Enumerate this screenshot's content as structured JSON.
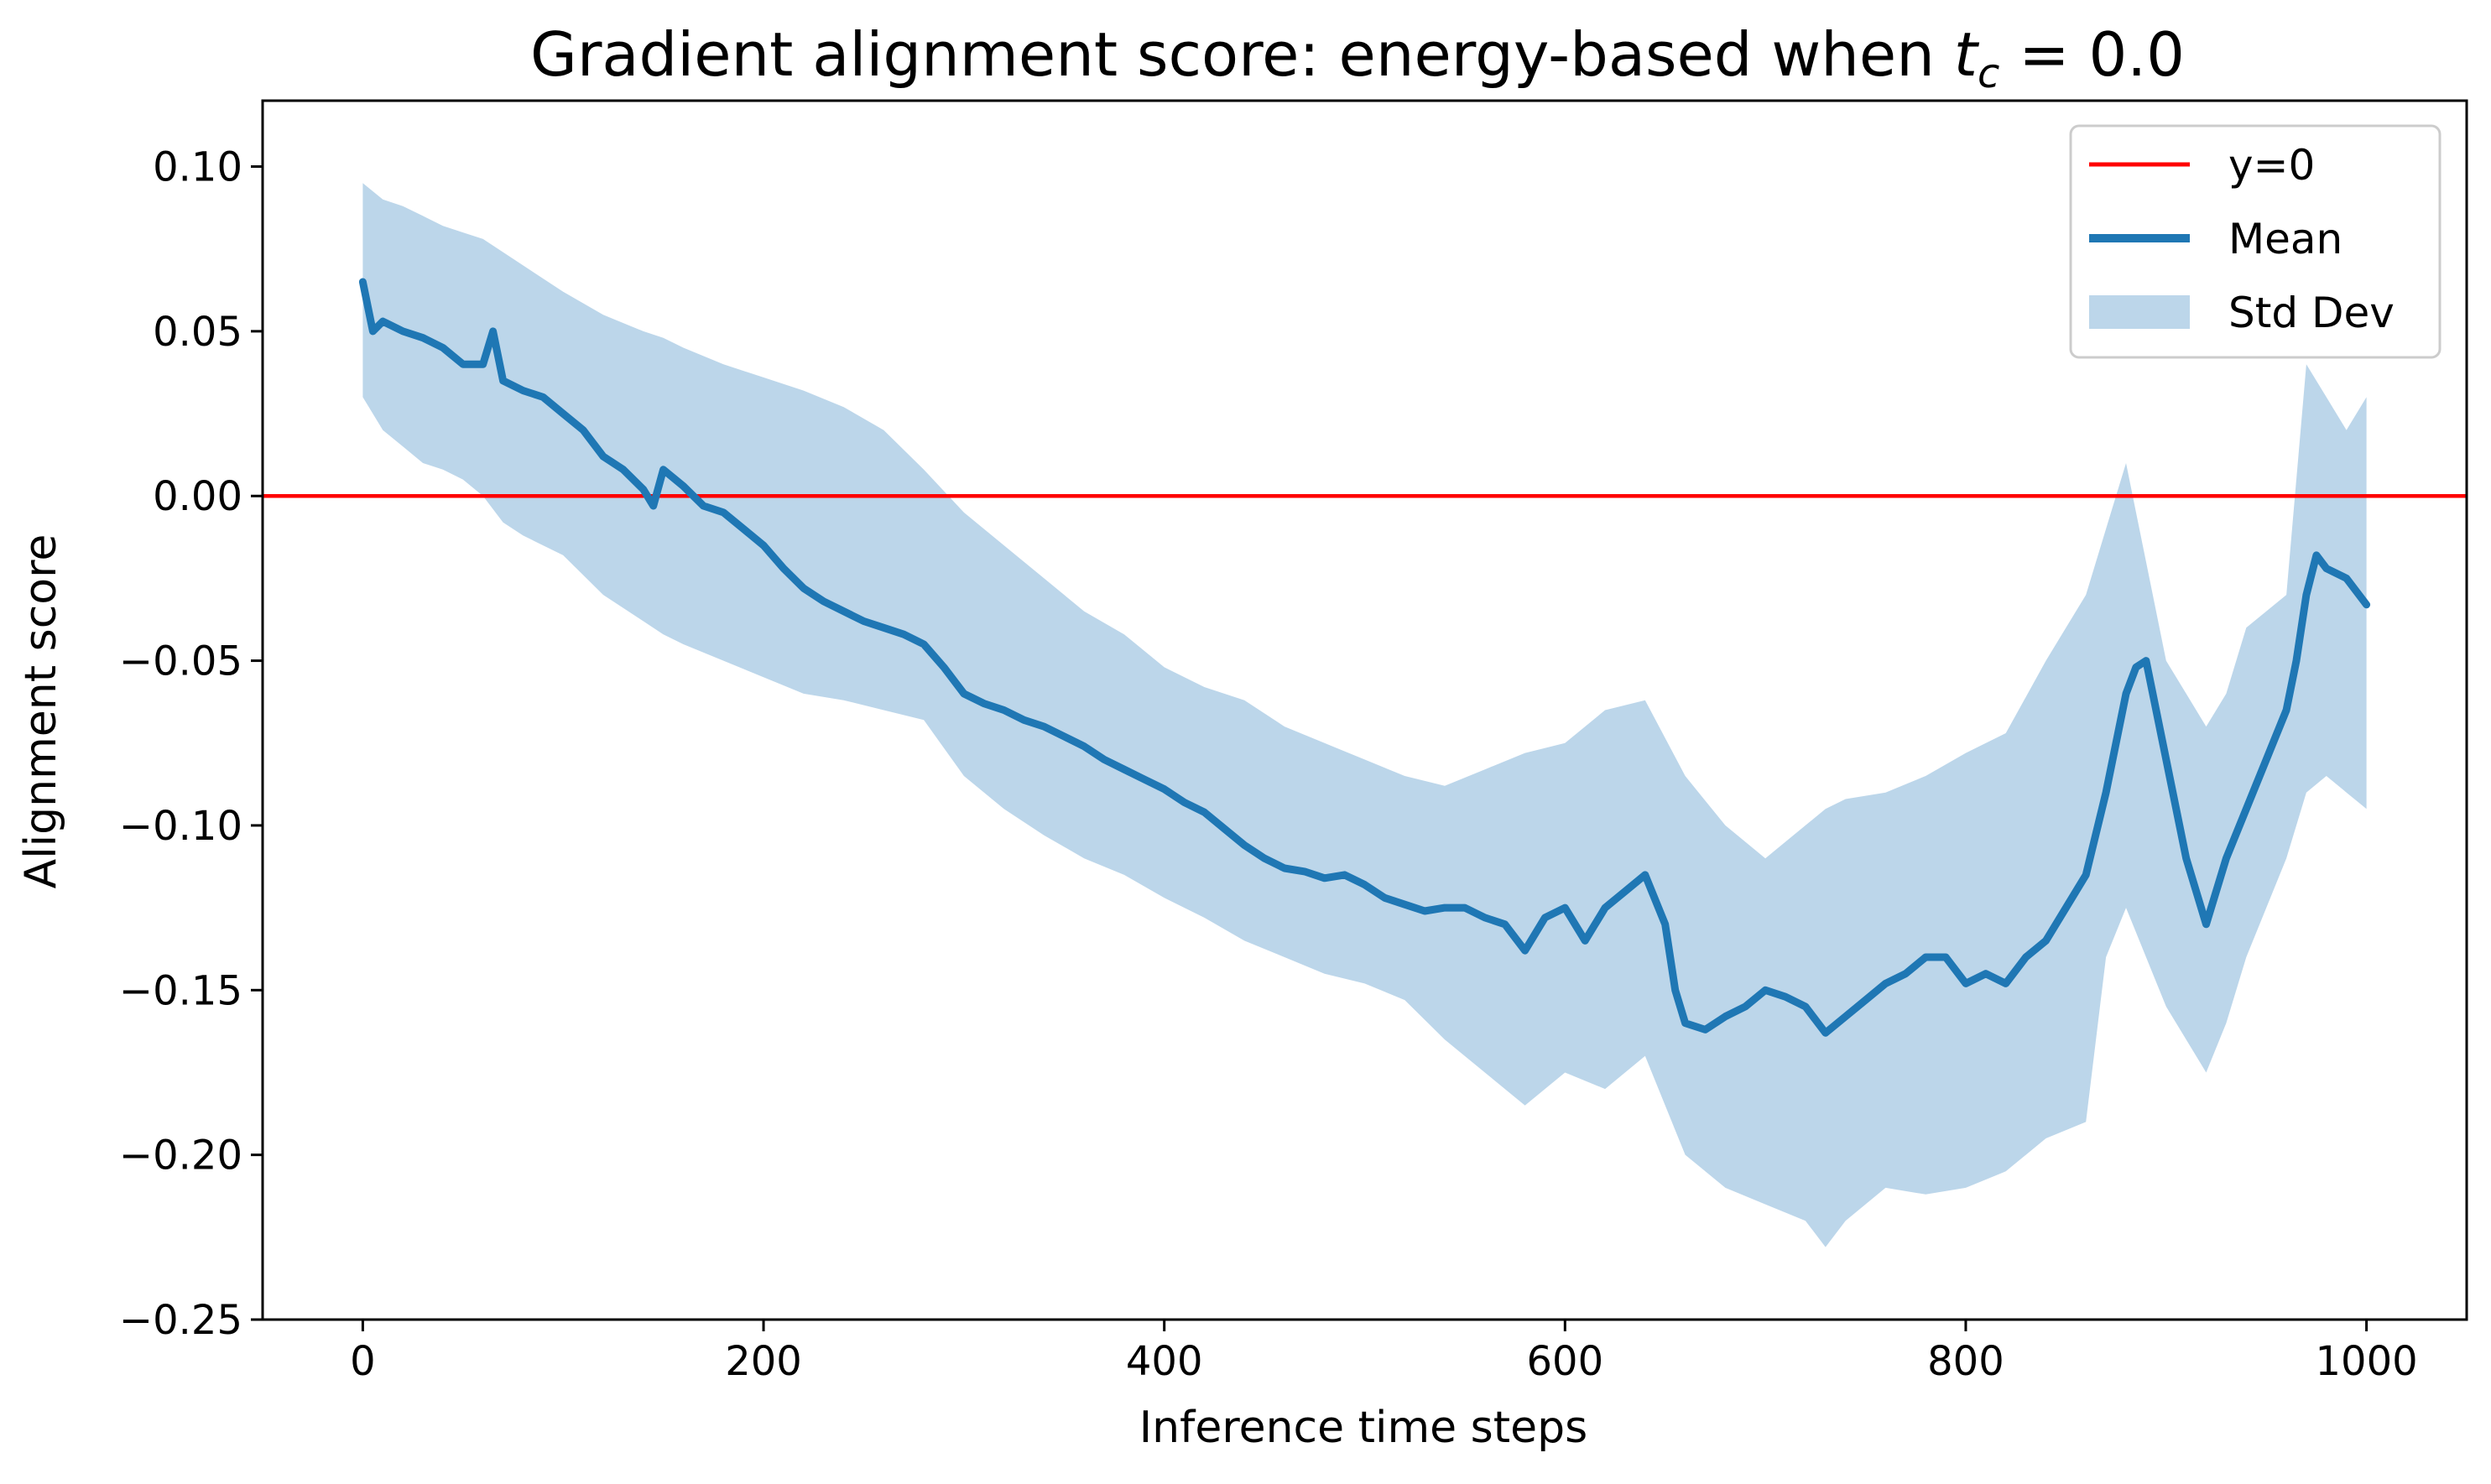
{
  "chart_data": {
    "type": "line",
    "title": "Gradient alignment score: energy-based when ",
    "title_math": {
      "base": "t",
      "subscript": "c",
      "rest": " = 0.0"
    },
    "xlabel": "Inference time steps",
    "ylabel": "Alignment score",
    "xlim": [
      -50,
      1050
    ],
    "ylim": [
      -0.25,
      0.12
    ],
    "xticks": [
      0,
      200,
      400,
      600,
      800,
      1000
    ],
    "xtick_labels": [
      "0",
      "200",
      "400",
      "600",
      "800",
      "1000"
    ],
    "yticks": [
      0.1,
      0.05,
      0.0,
      -0.05,
      -0.1,
      -0.15,
      -0.2,
      -0.25
    ],
    "ytick_labels": [
      "0.10",
      "0.05",
      "0.00",
      "−0.05",
      "−0.10",
      "−0.15",
      "−0.20",
      "−0.25"
    ],
    "grid": false,
    "legend_position": "top-right",
    "reference_line": {
      "y": 0,
      "name": "y=0",
      "color": "#ff0000"
    },
    "series": [
      {
        "name": "Mean",
        "color": "#1f77b4",
        "x": [
          0,
          5,
          10,
          20,
          30,
          40,
          50,
          60,
          65,
          70,
          80,
          90,
          100,
          110,
          120,
          130,
          140,
          145,
          150,
          160,
          170,
          180,
          190,
          200,
          210,
          220,
          230,
          240,
          250,
          260,
          270,
          280,
          290,
          300,
          310,
          320,
          330,
          340,
          350,
          360,
          370,
          380,
          390,
          400,
          410,
          420,
          430,
          440,
          450,
          460,
          470,
          480,
          490,
          500,
          510,
          520,
          530,
          540,
          550,
          560,
          570,
          580,
          590,
          600,
          610,
          620,
          630,
          640,
          650,
          655,
          660,
          670,
          680,
          690,
          700,
          710,
          720,
          730,
          740,
          750,
          760,
          770,
          780,
          790,
          800,
          810,
          820,
          830,
          840,
          850,
          860,
          870,
          880,
          885,
          890,
          900,
          910,
          915,
          920,
          930,
          940,
          950,
          960,
          965,
          970,
          975,
          980,
          990,
          1000
        ],
        "y": [
          0.065,
          0.05,
          0.053,
          0.05,
          0.048,
          0.045,
          0.04,
          0.04,
          0.05,
          0.035,
          0.032,
          0.03,
          0.025,
          0.02,
          0.012,
          0.008,
          0.002,
          -0.003,
          0.008,
          0.003,
          -0.003,
          -0.005,
          -0.01,
          -0.015,
          -0.022,
          -0.028,
          -0.032,
          -0.035,
          -0.038,
          -0.04,
          -0.042,
          -0.045,
          -0.052,
          -0.06,
          -0.063,
          -0.065,
          -0.068,
          -0.07,
          -0.073,
          -0.076,
          -0.08,
          -0.083,
          -0.086,
          -0.089,
          -0.093,
          -0.096,
          -0.101,
          -0.106,
          -0.11,
          -0.113,
          -0.114,
          -0.116,
          -0.115,
          -0.118,
          -0.122,
          -0.124,
          -0.126,
          -0.125,
          -0.125,
          -0.128,
          -0.13,
          -0.138,
          -0.128,
          -0.125,
          -0.135,
          -0.125,
          -0.12,
          -0.115,
          -0.13,
          -0.15,
          -0.16,
          -0.162,
          -0.158,
          -0.155,
          -0.15,
          -0.152,
          -0.155,
          -0.163,
          -0.158,
          -0.153,
          -0.148,
          -0.145,
          -0.14,
          -0.14,
          -0.148,
          -0.145,
          -0.148,
          -0.14,
          -0.135,
          -0.125,
          -0.115,
          -0.09,
          -0.06,
          -0.052,
          -0.05,
          -0.08,
          -0.11,
          -0.12,
          -0.13,
          -0.11,
          -0.095,
          -0.08,
          -0.065,
          -0.05,
          -0.03,
          -0.018,
          -0.022,
          -0.025,
          -0.033
        ]
      }
    ],
    "band": {
      "name": "Std Dev",
      "color": "#bcd6ea",
      "x": [
        0,
        10,
        20,
        30,
        40,
        50,
        60,
        70,
        80,
        100,
        120,
        140,
        150,
        160,
        180,
        200,
        220,
        240,
        260,
        280,
        300,
        320,
        340,
        360,
        380,
        400,
        420,
        440,
        460,
        480,
        500,
        520,
        540,
        560,
        580,
        600,
        620,
        640,
        660,
        680,
        700,
        720,
        730,
        740,
        760,
        780,
        800,
        820,
        840,
        860,
        870,
        880,
        890,
        900,
        910,
        920,
        930,
        940,
        960,
        970,
        980,
        990,
        1000
      ],
      "upper": [
        0.095,
        0.09,
        0.088,
        0.085,
        0.082,
        0.08,
        0.078,
        0.074,
        0.07,
        0.062,
        0.055,
        0.05,
        0.048,
        0.045,
        0.04,
        0.036,
        0.032,
        0.027,
        0.02,
        0.008,
        -0.005,
        -0.015,
        -0.025,
        -0.035,
        -0.042,
        -0.052,
        -0.058,
        -0.062,
        -0.07,
        -0.075,
        -0.08,
        -0.085,
        -0.088,
        -0.083,
        -0.078,
        -0.075,
        -0.065,
        -0.062,
        -0.085,
        -0.1,
        -0.11,
        -0.1,
        -0.095,
        -0.092,
        -0.09,
        -0.085,
        -0.078,
        -0.072,
        -0.05,
        -0.03,
        -0.01,
        0.01,
        -0.02,
        -0.05,
        -0.06,
        -0.07,
        -0.06,
        -0.04,
        -0.03,
        0.04,
        0.03,
        0.02,
        0.03
      ],
      "lower": [
        0.03,
        0.02,
        0.015,
        0.01,
        0.008,
        0.005,
        0.0,
        -0.008,
        -0.012,
        -0.018,
        -0.03,
        -0.038,
        -0.042,
        -0.045,
        -0.05,
        -0.055,
        -0.06,
        -0.062,
        -0.065,
        -0.068,
        -0.085,
        -0.095,
        -0.103,
        -0.11,
        -0.115,
        -0.122,
        -0.128,
        -0.135,
        -0.14,
        -0.145,
        -0.148,
        -0.153,
        -0.165,
        -0.175,
        -0.185,
        -0.175,
        -0.18,
        -0.17,
        -0.2,
        -0.21,
        -0.215,
        -0.22,
        -0.228,
        -0.22,
        -0.21,
        -0.212,
        -0.21,
        -0.205,
        -0.195,
        -0.19,
        -0.14,
        -0.125,
        -0.14,
        -0.155,
        -0.165,
        -0.175,
        -0.16,
        -0.14,
        -0.11,
        -0.09,
        -0.085,
        -0.09,
        -0.095
      ]
    }
  }
}
